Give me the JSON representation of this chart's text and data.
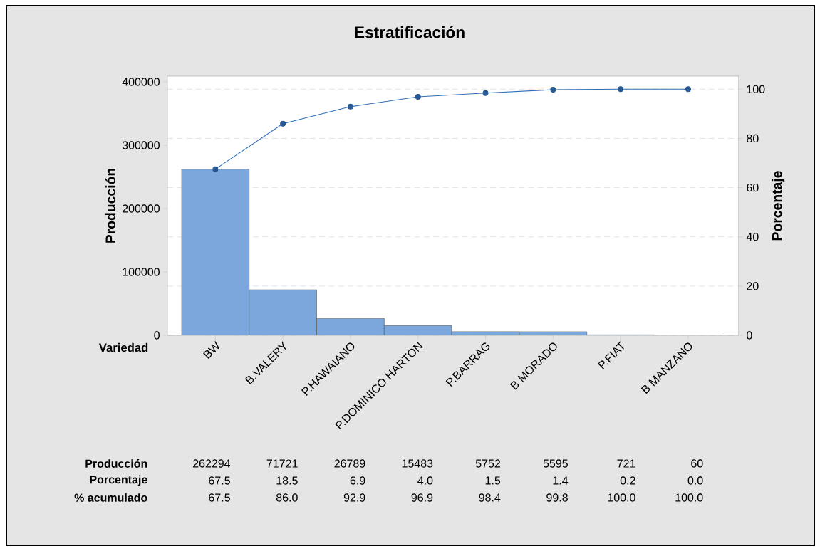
{
  "chart_data": {
    "type": "bar",
    "title": "Estratificación",
    "xlabel": "Variedad",
    "ylabel": "Producción",
    "y2label": "Porcentaje",
    "categories": [
      "BW",
      "B.VALERY",
      "P.HAWAIANO",
      "P.DOMINICO HARTON",
      "P.BARRAG",
      "B MORADO",
      "P.FIAT",
      "B MANZANO"
    ],
    "series": [
      {
        "color": "#7ba7dc",
        "values": [
          262294,
          71721,
          26789,
          15483,
          5752,
          5595,
          721,
          60
        ],
        "value_labels": [
          "262294",
          "71721",
          "26789",
          "15483",
          "5752",
          "5595",
          "721",
          "60"
        ]
      },
      {
        "type": "line",
        "axis": "y2",
        "color": "#2f6fb8",
        "values": [
          67.5,
          86.0,
          92.9,
          96.9,
          98.4,
          99.8,
          100.0,
          100.0
        ],
        "value_labels": [
          "67.5",
          "86.0",
          "92.9",
          "96.9",
          "98.4",
          "99.8",
          "100.0",
          "100.0"
        ]
      }
    ],
    "ylim": [
      0,
      409000
    ],
    "yticks": [
      0,
      100000,
      200000,
      300000,
      400000
    ],
    "y2lim": [
      0,
      105.3
    ],
    "y2ticks": [
      0,
      20,
      40,
      60,
      80,
      100
    ],
    "grid": "y",
    "marker": "circle",
    "line_style": "solid",
    "annotations": [
      "Producción",
      "Porcentaje",
      "% acumulado",
      "67.5",
      "18.5",
      "6.9",
      "4.0",
      "1.5",
      "1.4",
      "0.2",
      "0.0"
    ]
  }
}
